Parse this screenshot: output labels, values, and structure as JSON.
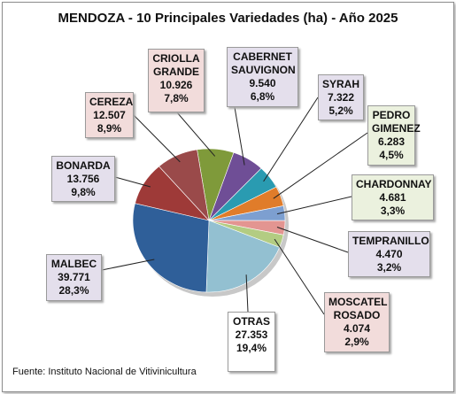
{
  "chart_data": {
    "type": "pie",
    "title": "MENDOZA - 10 Principales Variedades (ha) - Año 2025",
    "source": "Fuente: Instituto Nacional de Vitivinicultura",
    "slices": [
      {
        "name": "CRIOLLA GRANDE",
        "lines": [
          "CRIOLLA",
          "GRANDE"
        ],
        "value": 10926,
        "value_label": "10.926",
        "pct_label": "7,8%",
        "pct": 7.8,
        "color": "#7f9a3a",
        "label_bg": "#f2dcdb"
      },
      {
        "name": "CABERNET SAUVIGNON",
        "lines": [
          "CABERNET",
          "SAUVIGNON"
        ],
        "value": 9540,
        "value_label": "9.540",
        "pct_label": "6,8%",
        "pct": 6.8,
        "color": "#6f4e96",
        "label_bg": "#e4dfec"
      },
      {
        "name": "SYRAH",
        "lines": [
          "SYRAH"
        ],
        "value": 7322,
        "value_label": "7.322",
        "pct_label": "5,2%",
        "pct": 5.2,
        "color": "#2a9bb1",
        "label_bg": "#e4dfec"
      },
      {
        "name": "PEDRO GIMENEZ",
        "lines": [
          "PEDRO",
          "GIMENEZ"
        ],
        "value": 6283,
        "value_label": "6.283",
        "pct_label": "4,5%",
        "pct": 4.5,
        "color": "#e07c2a",
        "label_bg": "#ebf1de"
      },
      {
        "name": "CHARDONNAY",
        "lines": [
          "CHARDONNAY"
        ],
        "value": 4681,
        "value_label": "4.681",
        "pct_label": "3,3%",
        "pct": 3.3,
        "color": "#7d9fd0",
        "label_bg": "#ebf1de"
      },
      {
        "name": "TEMPRANILLO",
        "lines": [
          "TEMPRANILLO"
        ],
        "value": 4470,
        "value_label": "4.470",
        "pct_label": "3,2%",
        "pct": 3.2,
        "color": "#e39591",
        "label_bg": "#e4dfec"
      },
      {
        "name": "MOSCATEL ROSADO",
        "lines": [
          "MOSCATEL",
          "ROSADO"
        ],
        "value": 4074,
        "value_label": "4.074",
        "pct_label": "2,9%",
        "pct": 2.9,
        "color": "#b3cc82",
        "label_bg": "#f2dcdb"
      },
      {
        "name": "OTRAS",
        "lines": [
          "OTRAS"
        ],
        "value": 27353,
        "value_label": "27.353",
        "pct_label": "19,4%",
        "pct": 19.4,
        "color": "#93c0d1",
        "label_bg": "#ffffff"
      },
      {
        "name": "MALBEC",
        "lines": [
          "MALBEC"
        ],
        "value": 39771,
        "value_label": "39.771",
        "pct_label": "28,3%",
        "pct": 28.3,
        "color": "#2f5f99",
        "label_bg": "#e4dfec"
      },
      {
        "name": "BONARDA",
        "lines": [
          "BONARDA"
        ],
        "value": 13756,
        "value_label": "13.756",
        "pct_label": "9,8%",
        "pct": 9.8,
        "color": "#9e3a38",
        "label_bg": "#e4dfec"
      },
      {
        "name": "CEREZA",
        "lines": [
          "CEREZA"
        ],
        "value": 12507,
        "value_label": "12.507",
        "pct_label": "8,9%",
        "pct": 8.9,
        "color": "#9a4a4a",
        "label_bg": "#f2dcdb"
      }
    ]
  }
}
